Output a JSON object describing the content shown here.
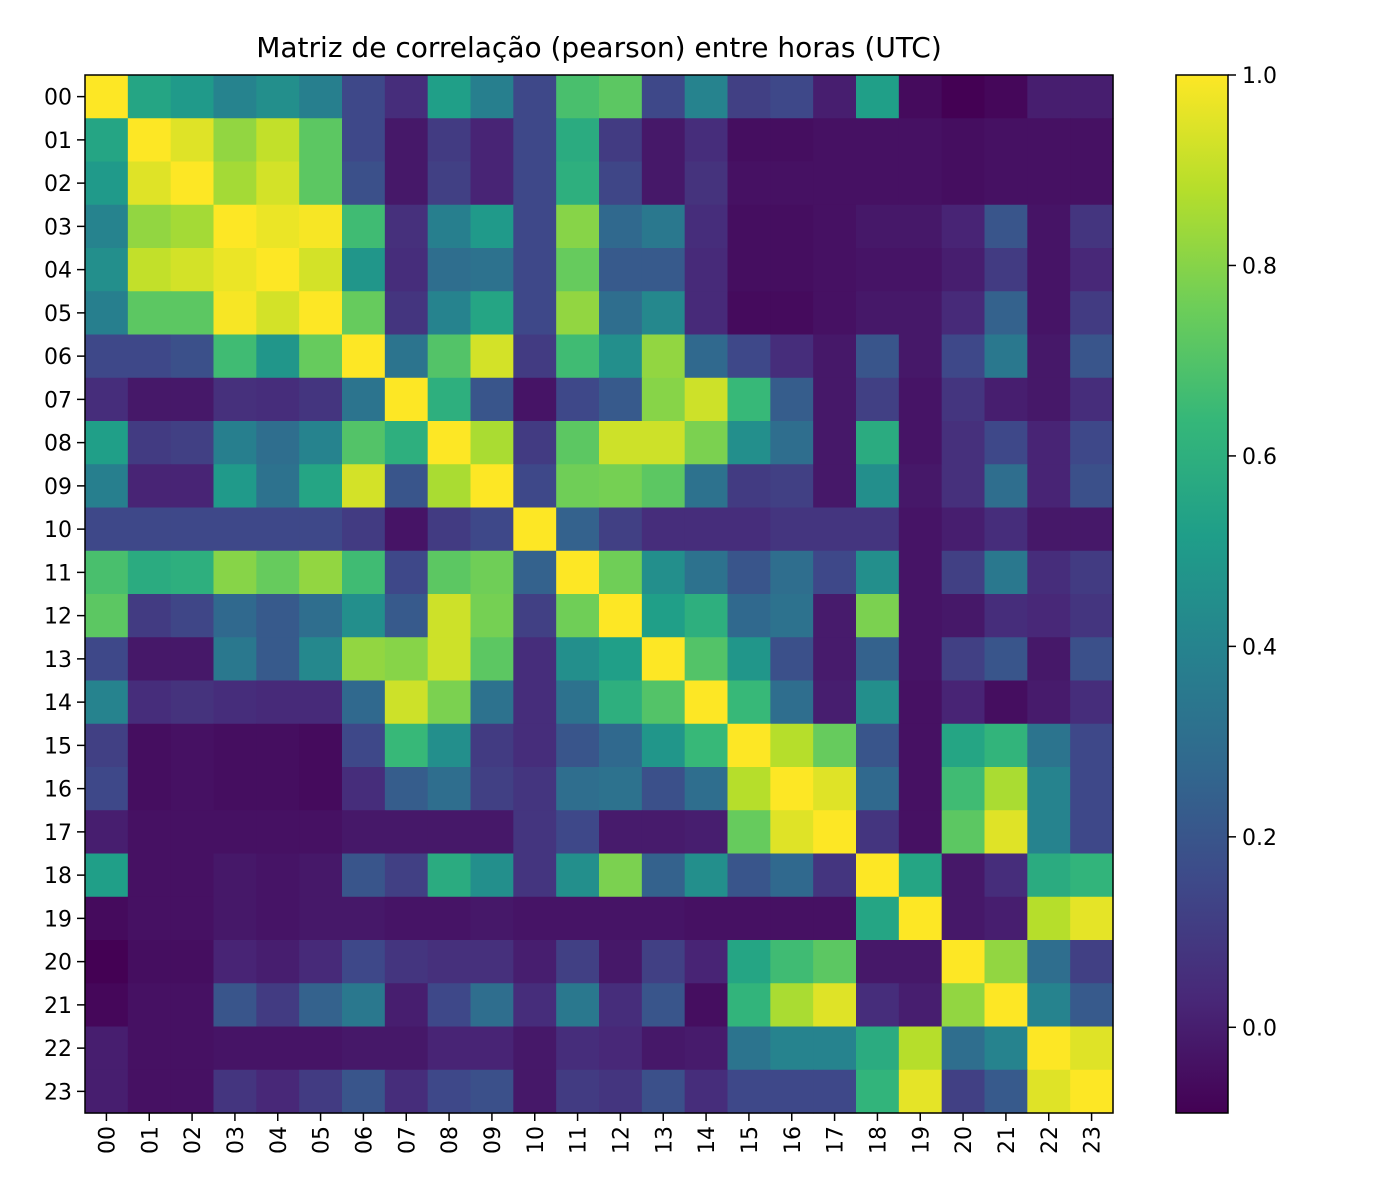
{
  "chart_data": {
    "type": "heatmap",
    "title": "Matriz de correlação (pearson) entre horas (UTC)",
    "colormap": "viridis",
    "categories": [
      "00",
      "01",
      "02",
      "03",
      "04",
      "05",
      "06",
      "07",
      "08",
      "09",
      "10",
      "11",
      "12",
      "13",
      "14",
      "15",
      "16",
      "17",
      "18",
      "19",
      "20",
      "21",
      "22",
      "23"
    ],
    "colorbar": {
      "min": -0.09,
      "max": 1.0,
      "ticks": [
        0.0,
        0.2,
        0.4,
        0.6,
        0.8,
        1.0
      ],
      "tick_labels": [
        "0.0",
        "0.2",
        "0.4",
        "0.6",
        "0.8",
        "1.0"
      ]
    },
    "matrix": [
      [
        1.0,
        0.55,
        0.5,
        0.4,
        0.45,
        0.38,
        0.15,
        0.05,
        0.52,
        0.38,
        0.15,
        0.68,
        0.72,
        0.15,
        0.4,
        0.12,
        0.15,
        0.0,
        0.52,
        -0.06,
        -0.09,
        -0.07,
        0.0,
        0.0
      ],
      [
        0.55,
        1.0,
        0.95,
        0.82,
        0.9,
        0.72,
        0.15,
        -0.02,
        0.1,
        0.02,
        0.15,
        0.58,
        0.1,
        -0.02,
        0.05,
        -0.05,
        -0.05,
        -0.04,
        -0.04,
        -0.04,
        -0.05,
        -0.04,
        -0.04,
        -0.04
      ],
      [
        0.5,
        0.95,
        1.0,
        0.85,
        0.93,
        0.72,
        0.18,
        -0.02,
        0.12,
        0.02,
        0.15,
        0.6,
        0.14,
        -0.02,
        0.07,
        -0.04,
        -0.04,
        -0.04,
        -0.04,
        -0.04,
        -0.05,
        -0.04,
        -0.04,
        -0.04
      ],
      [
        0.4,
        0.82,
        0.85,
        1.0,
        0.97,
        0.99,
        0.66,
        0.06,
        0.38,
        0.5,
        0.15,
        0.8,
        0.28,
        0.35,
        0.05,
        -0.05,
        -0.05,
        -0.04,
        -0.02,
        -0.02,
        0.02,
        0.2,
        -0.03,
        0.08
      ],
      [
        0.45,
        0.9,
        0.93,
        0.97,
        1.0,
        0.93,
        0.48,
        0.05,
        0.3,
        0.32,
        0.15,
        0.74,
        0.22,
        0.22,
        0.04,
        -0.05,
        -0.05,
        -0.04,
        -0.03,
        -0.03,
        0.0,
        0.1,
        -0.03,
        0.03
      ],
      [
        0.38,
        0.72,
        0.72,
        0.99,
        0.93,
        1.0,
        0.74,
        0.08,
        0.4,
        0.55,
        0.15,
        0.82,
        0.3,
        0.42,
        0.04,
        -0.06,
        -0.06,
        -0.04,
        -0.02,
        -0.02,
        0.04,
        0.25,
        -0.03,
        0.1
      ],
      [
        0.15,
        0.15,
        0.18,
        0.66,
        0.48,
        0.74,
        1.0,
        0.33,
        0.7,
        0.93,
        0.1,
        0.66,
        0.45,
        0.82,
        0.28,
        0.15,
        0.05,
        -0.02,
        0.2,
        -0.02,
        0.15,
        0.35,
        -0.02,
        0.2
      ],
      [
        0.05,
        -0.02,
        -0.02,
        0.06,
        0.05,
        0.08,
        0.33,
        1.0,
        0.6,
        0.2,
        -0.03,
        0.15,
        0.22,
        0.8,
        0.92,
        0.64,
        0.23,
        -0.02,
        0.12,
        -0.03,
        0.08,
        0.0,
        -0.02,
        0.05
      ],
      [
        0.52,
        0.1,
        0.12,
        0.38,
        0.3,
        0.4,
        0.7,
        0.6,
        1.0,
        0.86,
        0.1,
        0.72,
        0.92,
        0.92,
        0.78,
        0.45,
        0.3,
        -0.02,
        0.58,
        -0.03,
        0.06,
        0.15,
        0.02,
        0.15
      ],
      [
        0.38,
        0.02,
        0.02,
        0.5,
        0.32,
        0.55,
        0.93,
        0.2,
        0.86,
        1.0,
        0.15,
        0.76,
        0.77,
        0.72,
        0.32,
        0.1,
        0.12,
        -0.02,
        0.45,
        -0.02,
        0.06,
        0.3,
        0.02,
        0.18
      ],
      [
        0.15,
        0.15,
        0.15,
        0.15,
        0.15,
        0.15,
        0.1,
        -0.03,
        0.1,
        0.15,
        1.0,
        0.25,
        0.12,
        0.05,
        0.05,
        0.05,
        0.08,
        0.08,
        0.08,
        -0.03,
        0.0,
        0.05,
        -0.02,
        -0.02
      ],
      [
        0.68,
        0.58,
        0.6,
        0.8,
        0.74,
        0.82,
        0.66,
        0.15,
        0.72,
        0.76,
        0.25,
        1.0,
        0.76,
        0.45,
        0.32,
        0.2,
        0.3,
        0.15,
        0.45,
        -0.03,
        0.12,
        0.35,
        0.05,
        0.1
      ],
      [
        0.72,
        0.1,
        0.14,
        0.28,
        0.22,
        0.3,
        0.45,
        0.22,
        0.92,
        0.77,
        0.12,
        0.76,
        1.0,
        0.52,
        0.6,
        0.28,
        0.32,
        -0.01,
        0.78,
        -0.03,
        -0.02,
        0.05,
        0.03,
        0.08
      ],
      [
        0.15,
        -0.02,
        -0.02,
        0.35,
        0.22,
        0.42,
        0.82,
        0.8,
        0.92,
        0.72,
        0.05,
        0.45,
        0.52,
        1.0,
        0.7,
        0.48,
        0.18,
        -0.01,
        0.25,
        -0.03,
        0.12,
        0.2,
        -0.02,
        0.18
      ],
      [
        0.4,
        0.05,
        0.07,
        0.05,
        0.04,
        0.04,
        0.28,
        0.92,
        0.78,
        0.32,
        0.05,
        0.32,
        0.6,
        0.7,
        1.0,
        0.64,
        0.3,
        0.0,
        0.45,
        -0.04,
        0.02,
        -0.05,
        -0.01,
        0.05
      ],
      [
        0.12,
        -0.05,
        -0.04,
        -0.05,
        -0.05,
        -0.06,
        0.15,
        0.64,
        0.45,
        0.1,
        0.05,
        0.2,
        0.28,
        0.48,
        0.64,
        1.0,
        0.88,
        0.74,
        0.2,
        -0.04,
        0.55,
        0.62,
        0.33,
        0.15
      ],
      [
        0.15,
        -0.05,
        -0.04,
        -0.05,
        -0.05,
        -0.06,
        0.05,
        0.23,
        0.3,
        0.12,
        0.08,
        0.3,
        0.32,
        0.18,
        0.3,
        0.88,
        1.0,
        0.95,
        0.28,
        -0.04,
        0.66,
        0.86,
        0.4,
        0.15
      ],
      [
        0.0,
        -0.04,
        -0.04,
        -0.04,
        -0.04,
        -0.04,
        -0.02,
        -0.02,
        -0.02,
        -0.02,
        0.08,
        0.15,
        -0.01,
        -0.01,
        0.0,
        0.74,
        0.95,
        1.0,
        0.08,
        -0.04,
        0.72,
        0.95,
        0.4,
        0.15
      ],
      [
        0.52,
        -0.04,
        -0.04,
        -0.02,
        -0.03,
        -0.02,
        0.2,
        0.12,
        0.58,
        0.45,
        0.08,
        0.45,
        0.78,
        0.25,
        0.45,
        0.2,
        0.28,
        0.08,
        1.0,
        0.55,
        -0.02,
        0.05,
        0.58,
        0.62
      ],
      [
        -0.06,
        -0.04,
        -0.04,
        -0.02,
        -0.03,
        -0.02,
        -0.02,
        -0.03,
        -0.03,
        -0.02,
        -0.03,
        -0.03,
        -0.03,
        -0.03,
        -0.04,
        -0.04,
        -0.04,
        -0.04,
        0.55,
        1.0,
        -0.02,
        0.0,
        0.88,
        0.96
      ],
      [
        -0.09,
        -0.05,
        -0.05,
        0.02,
        0.0,
        0.04,
        0.15,
        0.08,
        0.06,
        0.06,
        0.0,
        0.12,
        -0.02,
        0.12,
        0.02,
        0.55,
        0.66,
        0.72,
        -0.02,
        -0.02,
        1.0,
        0.82,
        0.3,
        0.12
      ],
      [
        -0.07,
        -0.04,
        -0.04,
        0.2,
        0.1,
        0.25,
        0.35,
        0.0,
        0.15,
        0.3,
        0.05,
        0.35,
        0.05,
        0.2,
        -0.05,
        0.62,
        0.86,
        0.95,
        0.05,
        0.0,
        0.82,
        1.0,
        0.4,
        0.22
      ],
      [
        0.0,
        -0.04,
        -0.04,
        -0.03,
        -0.03,
        -0.03,
        -0.02,
        -0.02,
        0.02,
        0.02,
        -0.02,
        0.05,
        0.03,
        -0.02,
        -0.01,
        0.33,
        0.4,
        0.4,
        0.58,
        0.88,
        0.3,
        0.4,
        1.0,
        0.95
      ],
      [
        0.0,
        -0.04,
        -0.04,
        0.08,
        0.03,
        0.1,
        0.2,
        0.05,
        0.15,
        0.18,
        -0.02,
        0.1,
        0.08,
        0.18,
        0.05,
        0.15,
        0.15,
        0.15,
        0.62,
        0.96,
        0.12,
        0.22,
        0.95,
        1.0
      ]
    ]
  }
}
